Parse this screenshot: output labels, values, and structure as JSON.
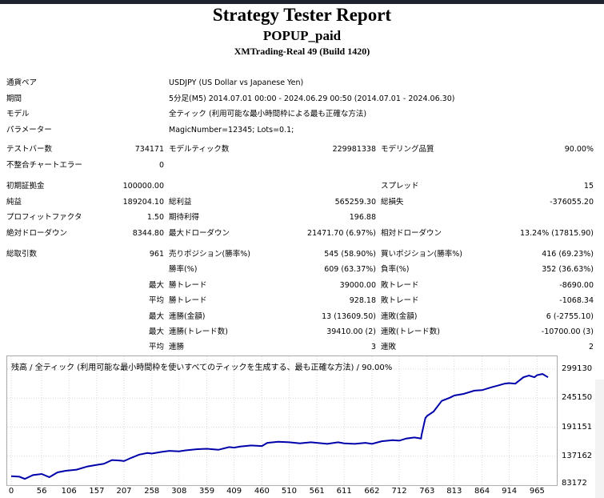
{
  "report": {
    "title": "Strategy Tester Report",
    "expert": "POPUP_paid",
    "server": "XMTrading-Real 49 (Build 1420)"
  },
  "settings": {
    "symbol_label": "通貨ペア",
    "symbol_value": "USDJPY (US Dollar vs Japanese Yen)",
    "period_label": "期間",
    "period_value": "5分足(M5) 2014.07.01 00:00 - 2024.06.29 00:50 (2014.07.01 - 2024.06.30)",
    "model_label": "モデル",
    "model_value": "全ティック (利用可能な最小時間枠による最も正確な方法)",
    "params_label": "パラメーター",
    "params_value": "MagicNumber=12345; Lots=0.1;"
  },
  "stats": {
    "bars_label": "テストバー数",
    "bars_value": "734171",
    "ticks_label": "モデルティック数",
    "ticks_value": "229981338",
    "quality_label": "モデリング品質",
    "quality_value": "90.00%",
    "mismatch_label": "不整合チャートエラー",
    "mismatch_value": "0",
    "deposit_label": "初期証拠金",
    "deposit_value": "100000.00",
    "spread_label": "スプレッド",
    "spread_value": "15",
    "net_label": "純益",
    "net_value": "189204.10",
    "gross_profit_label": "総利益",
    "gross_profit_value": "565259.30",
    "gross_loss_label": "総損失",
    "gross_loss_value": "-376055.20",
    "pf_label": "プロフィットファクタ",
    "pf_value": "1.50",
    "payoff_label": "期待利得",
    "payoff_value": "196.88",
    "abs_dd_label": "絶対ドローダウン",
    "abs_dd_value": "8344.80",
    "max_dd_label": "最大ドローダウン",
    "max_dd_value": "21471.70 (6.97%)",
    "rel_dd_label": "相対ドローダウン",
    "rel_dd_value": "13.24% (17815.90)",
    "total_trades_label": "総取引数",
    "total_trades_value": "961",
    "short_label": "売りポジション(勝率%)",
    "short_value": "545 (58.90%)",
    "long_label": "買いポジション(勝率%)",
    "long_value": "416 (69.23%)",
    "win_label": "勝率(%)",
    "win_value": "609 (63.37%)",
    "loss_label": "負率(%)",
    "loss_value": "352 (36.63%)",
    "max_word": "最大",
    "avg_word": "平均",
    "largest_win_label": "勝トレード",
    "largest_win_value": "39000.00",
    "largest_loss_label": "敗トレード",
    "largest_loss_value": "-8690.00",
    "avg_win_label": "勝トレード",
    "avg_win_value": "928.18",
    "avg_loss_label": "敗トレード",
    "avg_loss_value": "-1068.34",
    "max_cons_wins_label": "連勝(金額)",
    "max_cons_wins_value": "13 (13609.50)",
    "max_cons_losses_label": "連敗(金額)",
    "max_cons_losses_value": "6 (-2755.10)",
    "max_cons_profit_label": "連勝(トレード数)",
    "max_cons_profit_value": "39410.00 (2)",
    "max_cons_loss_label": "連敗(トレード数)",
    "max_cons_loss_value": "-10700.00 (3)",
    "avg_cons_wins_label": "連勝",
    "avg_cons_wins_value": "3",
    "avg_cons_losses_label": "連敗",
    "avg_cons_losses_value": "2"
  },
  "chart_caption": "残高 / 全ティック (利用可能な最小時間枠を使いすべてのティックを生成する、最も正確な方法) / 90.00%",
  "chart_data": {
    "type": "line",
    "title": "",
    "xlabel": "",
    "ylabel": "",
    "xlim": [
      0,
      985
    ],
    "ylim": [
      83172,
      299130
    ],
    "x_ticks": [
      "0",
      "56",
      "106",
      "157",
      "207",
      "258",
      "308",
      "359",
      "409",
      "460",
      "510",
      "561",
      "611",
      "662",
      "712",
      "763",
      "813",
      "864",
      "914",
      "965"
    ],
    "y_ticks": [
      "299130",
      "245150",
      "191151",
      "137162",
      "83172"
    ],
    "line_color": "#0000aa",
    "series": [
      {
        "x": [
          0,
          15,
          25,
          40,
          56,
          70,
          85,
          100,
          120,
          140,
          157,
          170,
          185,
          200,
          207,
          220,
          235,
          250,
          258,
          275,
          290,
          308,
          320,
          340,
          359,
          380,
          400,
          409,
          420,
          440,
          460,
          470,
          490,
          510,
          530,
          550,
          561,
          580,
          600,
          611,
          630,
          650,
          662,
          680,
          700,
          712,
          725,
          740,
          752,
          753,
          760,
          763,
          775,
          790,
          805,
          813,
          830,
          850,
          864,
          880,
          895,
          905,
          914,
          925,
          940,
          950,
          960,
          965,
          975,
          985
        ],
        "y": [
          100000,
          99000,
          95000,
          102000,
          104000,
          98000,
          107000,
          110000,
          112000,
          118000,
          121000,
          123000,
          130000,
          129000,
          128000,
          134000,
          140000,
          143000,
          142000,
          145000,
          147000,
          146000,
          148000,
          150000,
          151000,
          149000,
          154000,
          153000,
          155000,
          157000,
          156000,
          162000,
          164000,
          163000,
          161000,
          163000,
          162000,
          160000,
          163000,
          161000,
          160000,
          162000,
          160000,
          165000,
          167000,
          166000,
          170000,
          172000,
          170000,
          177000,
          208000,
          212000,
          220000,
          240000,
          246000,
          250000,
          253000,
          259000,
          260000,
          265000,
          269000,
          272000,
          273000,
          272000,
          284000,
          287000,
          284000,
          288000,
          290000,
          284000
        ]
      }
    ]
  }
}
